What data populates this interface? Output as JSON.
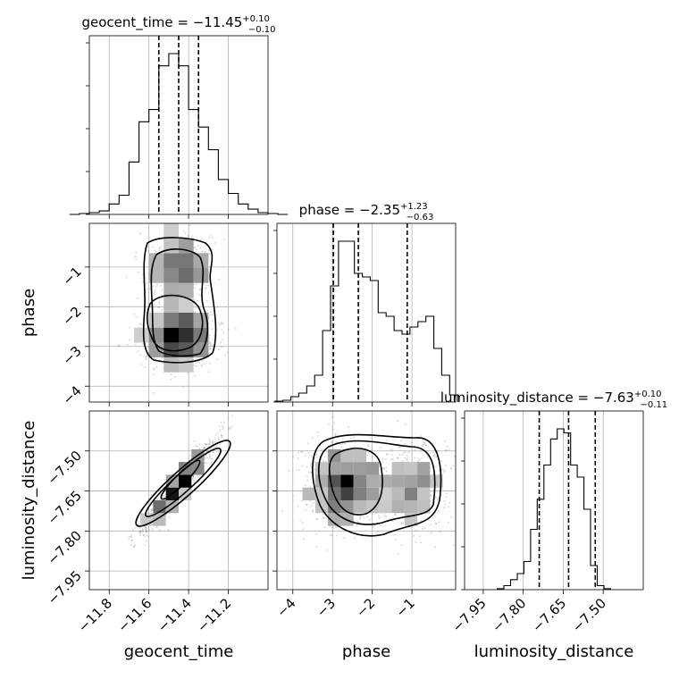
{
  "chart_data": {
    "type": "corner",
    "grid": true,
    "parameters": [
      "geocent_time",
      "phase",
      "luminosity_distance"
    ],
    "axis_labels": {
      "geocent_time": "geocent_time",
      "phase": "phase",
      "luminosity_distance": "luminosity_distance"
    },
    "ranges": {
      "geocent_time": [
        -11.9,
        -11.0
      ],
      "phase": [
        -4.4,
        0.1
      ],
      "luminosity_distance": [
        -8.02,
        -7.35
      ]
    },
    "ticks": {
      "geocent_time": {
        "values": [
          -11.8,
          -11.6,
          -11.4,
          -11.2
        ],
        "labels": [
          "−11.8",
          "−11.6",
          "−11.4",
          "−11.2"
        ]
      },
      "phase": {
        "values": [
          -4,
          -3,
          -2,
          -1
        ],
        "labels": [
          "−4",
          "−3",
          "−2",
          "−1"
        ]
      },
      "luminosity_distance": {
        "values": [
          -7.95,
          -7.8,
          -7.65,
          -7.5
        ],
        "labels": [
          "−7.95",
          "−7.80",
          "−7.65",
          "−7.50"
        ]
      }
    },
    "titles": [
      {
        "param": "geocent_time",
        "text": "geocent_time = −11.45",
        "sup": "+0.10",
        "sub": "−0.10"
      },
      {
        "param": "phase",
        "text": "phase = −2.35",
        "sup": "+1.23",
        "sub": "−0.63"
      },
      {
        "param": "luminosity_distance",
        "text": "luminosity_distance = −7.63",
        "sup": "+0.10",
        "sub": "−0.11"
      }
    ],
    "quantiles": {
      "geocent_time": [
        -11.55,
        -11.45,
        -11.35
      ],
      "phase": [
        -2.98,
        -2.35,
        -1.12
      ],
      "luminosity_distance": [
        -7.74,
        -7.63,
        -7.53
      ]
    },
    "histograms": {
      "geocent_time": {
        "bin_width": 0.05,
        "counts": [
          0,
          0.5,
          1,
          2,
          6,
          11,
          30,
          53,
          60,
          85,
          92,
          85,
          60,
          50,
          37,
          20,
          12,
          6,
          3,
          1,
          0.5,
          0
        ]
      },
      "phase": {
        "bin_width": 0.2,
        "counts": [
          0.5,
          1,
          3,
          5,
          9,
          15,
          40,
          65,
          90,
          90,
          72,
          70,
          68,
          50,
          48,
          40,
          38,
          42,
          45,
          48,
          30,
          15,
          4
        ]
      },
      "luminosity_distance": {
        "bin_width": 0.025,
        "counts": [
          0.5,
          2,
          5,
          8,
          14,
          30,
          45,
          62,
          75,
          80,
          78,
          62,
          56,
          40,
          12,
          2,
          0.5
        ]
      }
    }
  }
}
